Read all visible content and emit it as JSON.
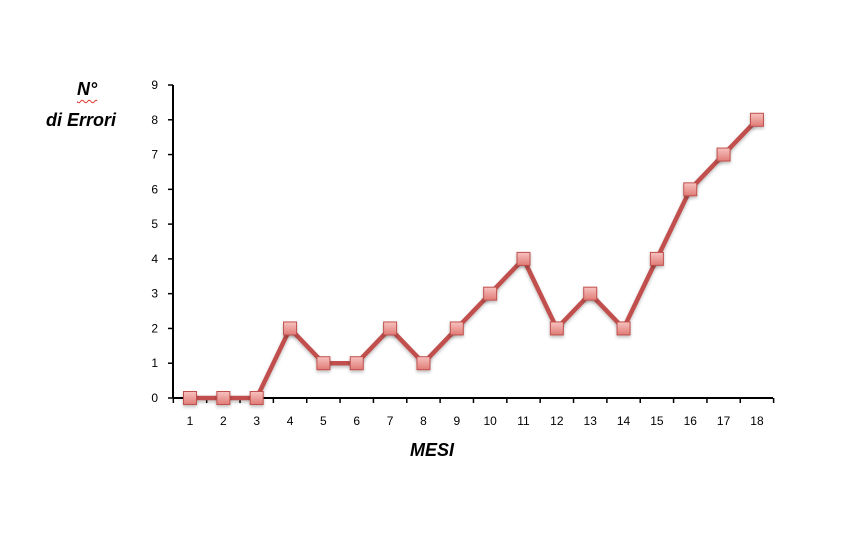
{
  "chart_data": {
    "type": "line",
    "ylabel_line1": "N°",
    "ylabel_line2": "di Errori",
    "xlabel": "MESI",
    "categories": [
      "1",
      "2",
      "3",
      "4",
      "5",
      "6",
      "7",
      "8",
      "9",
      "10",
      "11",
      "12",
      "13",
      "14",
      "15",
      "16",
      "17",
      "18"
    ],
    "values": [
      0,
      0,
      0,
      2,
      1,
      1,
      2,
      1,
      2,
      3,
      4,
      2,
      3,
      2,
      4,
      6,
      7,
      8
    ],
    "y_ticks": [
      "0",
      "1",
      "2",
      "3",
      "4",
      "5",
      "6",
      "7",
      "8",
      "9"
    ],
    "ylim": [
      0,
      9
    ],
    "grid": false,
    "line_color": "#c0504d",
    "marker_color": "#e8908c",
    "marker_shape": "square"
  }
}
